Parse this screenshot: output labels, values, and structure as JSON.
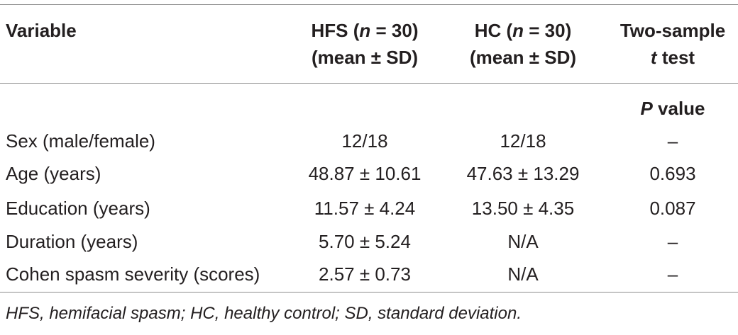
{
  "table": {
    "header": {
      "variable": "Variable",
      "hfs": {
        "group": "HFS (",
        "n_symbol": "n",
        "n_value": " = 30)",
        "stat": "(mean ± SD)"
      },
      "hc": {
        "group": "HC (",
        "n_symbol": "n",
        "n_value": " = 30)",
        "stat": "(mean ± SD)"
      },
      "test": {
        "line1": "Two-sample",
        "t_symbol": "t",
        "line2_rest": " test"
      },
      "pvalue": {
        "p_symbol": "P",
        "rest": " value"
      }
    },
    "rows": [
      {
        "variable": "Sex (male/female)",
        "hfs": "12/18",
        "hc": "12/18",
        "p": "–"
      },
      {
        "variable": "Age (years)",
        "hfs": "48.87 ± 10.61",
        "hc": "47.63 ± 13.29",
        "p": "0.693"
      },
      {
        "variable": "Education (years)",
        "hfs": "11.57 ± 4.24",
        "hc": "13.50 ± 4.35",
        "p": "0.087"
      },
      {
        "variable": "Duration (years)",
        "hfs": "5.70 ± 5.24",
        "hc": "N/A",
        "p": "–"
      },
      {
        "variable": "Cohen spasm severity (scores)",
        "hfs": "2.57 ± 0.73",
        "hc": "N/A",
        "p": "–"
      }
    ]
  },
  "footnote": "HFS, hemifacial spasm; HC, healthy control; SD, standard deviation."
}
